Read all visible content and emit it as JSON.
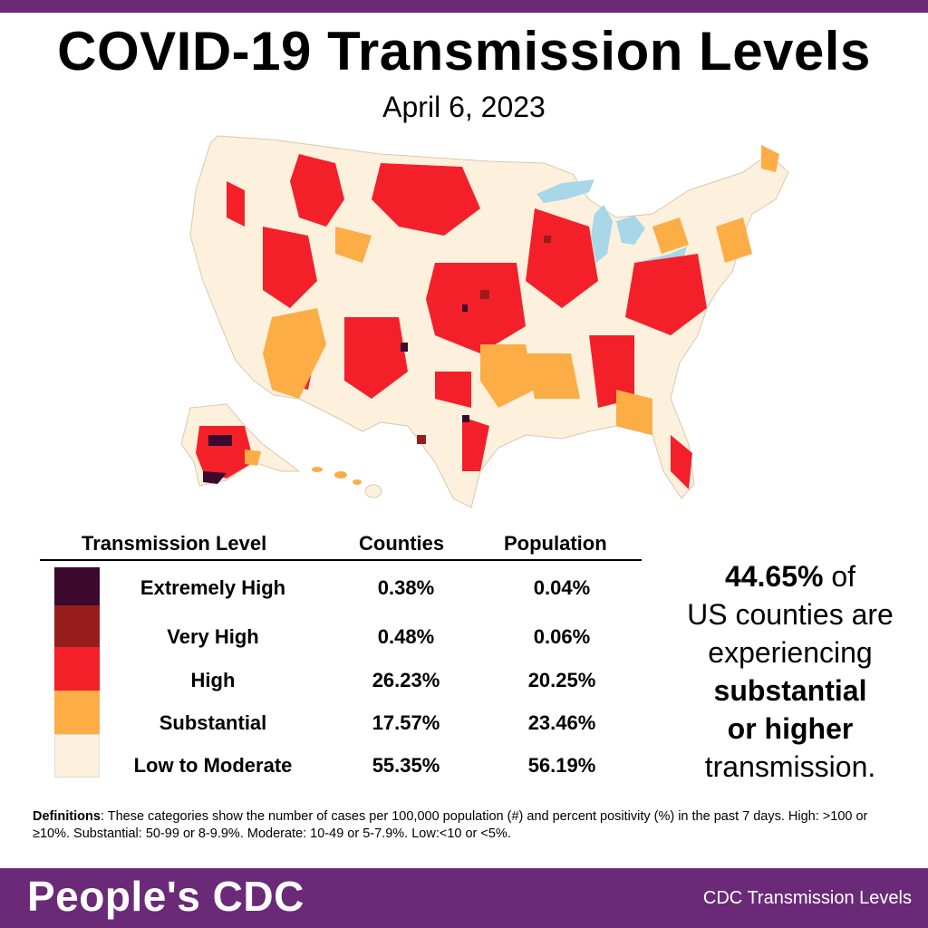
{
  "title": "COVID-19 Transmission Levels",
  "date": "April 6, 2023",
  "colors": {
    "extremely_high": "#3b0a2e",
    "very_high": "#971d1d",
    "high": "#f3202a",
    "substantial": "#fcad46",
    "low_moderate": "#fdf0dc",
    "water": "#a7d7e8",
    "brand": "#6a2a78"
  },
  "legend": {
    "header_level": "Transmission Level",
    "header_counties": "Counties",
    "header_population": "Population",
    "rows": [
      {
        "level": "Extremely High",
        "counties": "0.38%",
        "population": "0.04%"
      },
      {
        "level": "Very High",
        "counties": "0.48%",
        "population": "0.06%"
      },
      {
        "level": "High",
        "counties": "26.23%",
        "population": "20.25%"
      },
      {
        "level": "Substantial",
        "counties": "17.57%",
        "population": "23.46%"
      },
      {
        "level": "Low to Moderate",
        "counties": "55.35%",
        "population": "56.19%"
      }
    ]
  },
  "summary": {
    "percent": "44.65%",
    "line1_suffix": " of",
    "line2": "US counties are",
    "line3": "experiencing",
    "line4": "substantial",
    "line5": "or higher",
    "line6": "transmission."
  },
  "definitions": {
    "label": "Definitions",
    "text": ": These categories show the number of cases per 100,000 population (#) and percent positivity (%) in the past 7 days. High: >100  or ≥10%. Substantial: 50-99 or 8-9.9%. Moderate: 10-49 or 5-7.9%. Low:<10 or <5%."
  },
  "footer": {
    "brand": "People's CDC",
    "right_text": "CDC Transmission Levels"
  }
}
